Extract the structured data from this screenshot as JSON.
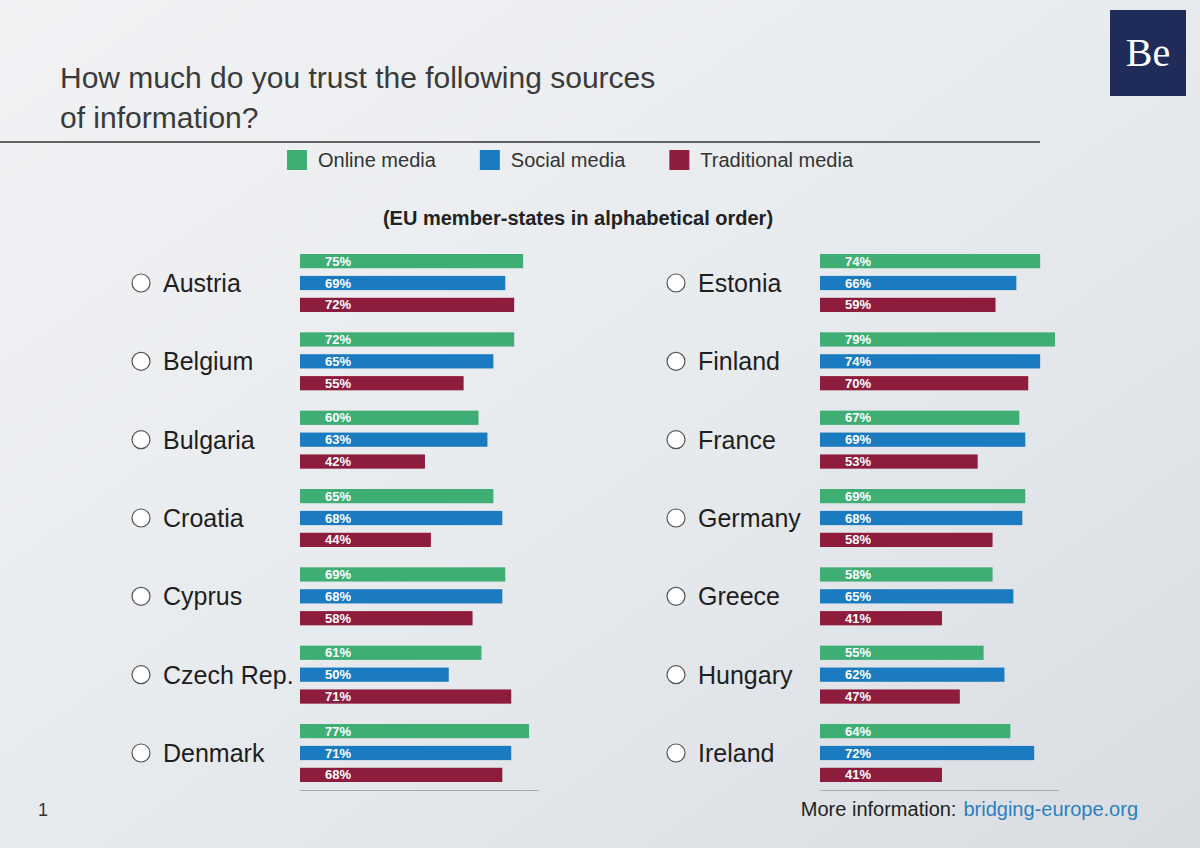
{
  "chart_data": {
    "type": "bar",
    "orientation": "horizontal",
    "title": "How much do you trust the following sources of information?",
    "subtitle": "(EU member-states in alphabetical order)",
    "annotations": [
      "1",
      "More information:",
      "bridging-europe.org",
      "Be"
    ],
    "categories": [
      "Austria",
      "Belgium",
      "Bulgaria",
      "Croatia",
      "Cyprus",
      "Czech Rep.",
      "Denmark",
      "Estonia",
      "Finland",
      "France",
      "Germany",
      "Greece",
      "Hungary",
      "Ireland"
    ],
    "series": [
      {
        "name": "Online media",
        "color": "#3fae74",
        "values": [
          75,
          72,
          60,
          65,
          69,
          61,
          77,
          74,
          79,
          67,
          69,
          58,
          55,
          64
        ],
        "value_labels": [
          "75%",
          "72%",
          "60%",
          "65%",
          "69%",
          "61%",
          "77%",
          "74%",
          "79%",
          "67%",
          "69%",
          "58%",
          "55%",
          "64%"
        ]
      },
      {
        "name": "Social media",
        "color": "#1b7bc0",
        "values": [
          69,
          65,
          63,
          68,
          68,
          50,
          71,
          66,
          74,
          69,
          68,
          65,
          62,
          72
        ],
        "value_labels": [
          "69%",
          "65%",
          "63%",
          "68%",
          "68%",
          "50%",
          "71%",
          "66%",
          "74%",
          "69%",
          "68%",
          "65%",
          "62%",
          "72%"
        ]
      },
      {
        "name": "Traditional media",
        "color": "#8e1c3c",
        "values": [
          72,
          55,
          42,
          44,
          58,
          71,
          68,
          59,
          70,
          53,
          58,
          41,
          47,
          41
        ],
        "value_labels": [
          "72%",
          "55%",
          "42%",
          "44%",
          "58%",
          "71%",
          "68%",
          "59%",
          "70%",
          "53%",
          "58%",
          "41%",
          "47%",
          "41%"
        ]
      }
    ],
    "xlim": [
      0,
      80
    ],
    "legend": "top",
    "data_labels": true,
    "tick_labels": "y"
  }
}
